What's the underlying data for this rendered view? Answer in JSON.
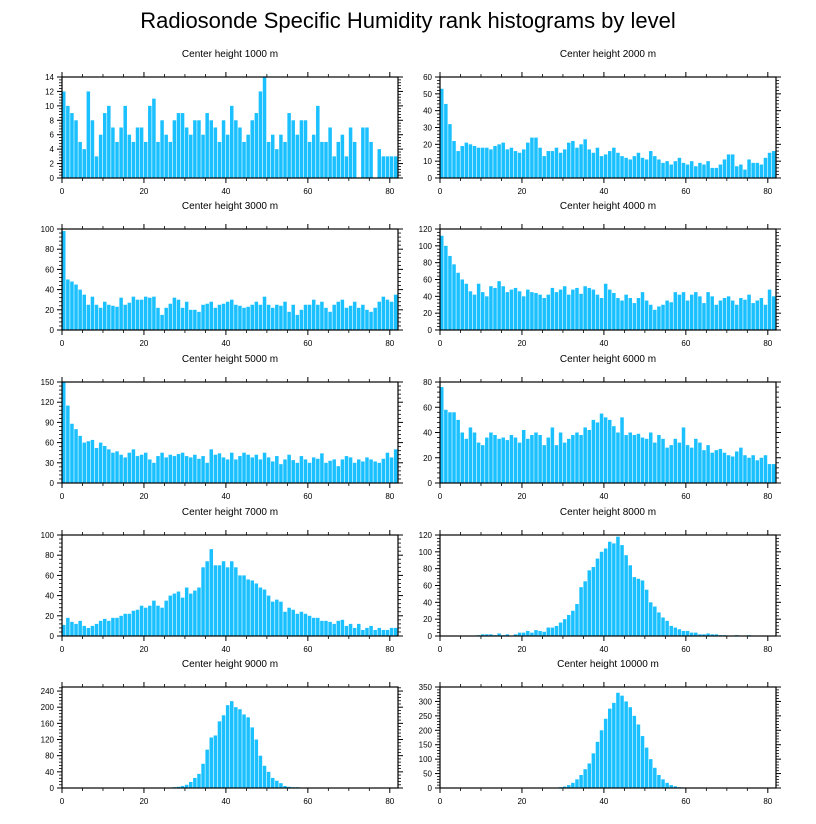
{
  "figure": {
    "title": "Radiosonde Specific Humidity rank histograms by level",
    "bar_color": "#1ac0ff",
    "axis_color": "#000000"
  },
  "chart_data": [
    {
      "type": "bar",
      "title": "Center height 1000 m",
      "xlim": [
        0,
        82
      ],
      "ylim": [
        0,
        14
      ],
      "yticks": [
        0,
        2,
        4,
        6,
        8,
        10,
        12,
        14
      ],
      "xticks": [
        0,
        20,
        40,
        60,
        80
      ],
      "values": [
        12,
        10,
        9,
        8,
        5,
        4,
        12,
        8,
        3,
        6,
        9,
        10,
        7,
        5,
        7,
        10,
        6,
        5,
        7,
        7,
        5,
        10,
        11,
        5,
        8,
        6,
        5,
        8,
        9,
        9,
        7,
        6,
        8,
        8,
        6,
        9,
        8,
        7,
        5,
        8,
        6,
        10,
        8,
        7,
        5,
        6,
        8,
        9,
        12,
        14,
        5,
        6,
        4,
        6,
        5,
        9,
        8,
        6,
        8,
        8,
        5,
        6,
        10,
        5,
        5,
        7,
        3,
        5,
        6,
        3,
        7,
        5,
        0,
        7,
        7,
        5,
        0,
        4,
        3,
        3,
        3,
        3
      ]
    },
    {
      "type": "bar",
      "title": "Center height 2000 m",
      "xlim": [
        0,
        82
      ],
      "ylim": [
        0,
        60
      ],
      "yticks": [
        0,
        10,
        20,
        30,
        40,
        50,
        60
      ],
      "xticks": [
        0,
        20,
        40,
        60,
        80
      ],
      "values": [
        53,
        44,
        32,
        22,
        16,
        19,
        21,
        20,
        19,
        18,
        18,
        18,
        17,
        19,
        20,
        21,
        17,
        18,
        16,
        15,
        17,
        21,
        24,
        24,
        18,
        13,
        16,
        16,
        18,
        15,
        17,
        21,
        22,
        18,
        20,
        23,
        17,
        15,
        18,
        13,
        14,
        16,
        18,
        15,
        13,
        12,
        11,
        13,
        15,
        12,
        11,
        16,
        13,
        11,
        9,
        10,
        8,
        10,
        12,
        9,
        8,
        10,
        7,
        9,
        8,
        10,
        6,
        6,
        8,
        11,
        14,
        14,
        7,
        8,
        5,
        11,
        9,
        9,
        8,
        12,
        15,
        16
      ]
    },
    {
      "type": "bar",
      "title": "Center height 3000 m",
      "xlim": [
        0,
        82
      ],
      "ylim": [
        0,
        100
      ],
      "yticks": [
        0,
        20,
        40,
        60,
        80,
        100
      ],
      "xticks": [
        0,
        20,
        40,
        60,
        80
      ],
      "values": [
        98,
        50,
        48,
        45,
        40,
        35,
        25,
        33,
        25,
        22,
        28,
        25,
        24,
        23,
        32,
        25,
        27,
        33,
        30,
        30,
        33,
        32,
        33,
        22,
        15,
        22,
        26,
        32,
        30,
        22,
        28,
        20,
        20,
        18,
        25,
        26,
        28,
        22,
        25,
        26,
        28,
        30,
        25,
        24,
        22,
        23,
        25,
        28,
        25,
        33,
        25,
        22,
        25,
        24,
        28,
        18,
        25,
        15,
        20,
        25,
        25,
        30,
        25,
        28,
        22,
        18,
        25,
        28,
        30,
        22,
        24,
        28,
        22,
        25,
        20,
        18,
        22,
        28,
        33,
        30,
        28,
        35
      ]
    },
    {
      "type": "bar",
      "title": "Center height 4000 m",
      "xlim": [
        0,
        82
      ],
      "ylim": [
        0,
        120
      ],
      "yticks": [
        0,
        20,
        40,
        60,
        80,
        100,
        120
      ],
      "xticks": [
        0,
        20,
        40,
        60,
        80
      ],
      "values": [
        112,
        100,
        88,
        78,
        68,
        60,
        55,
        46,
        42,
        55,
        45,
        40,
        52,
        50,
        58,
        52,
        45,
        48,
        50,
        46,
        40,
        48,
        45,
        44,
        42,
        38,
        42,
        50,
        45,
        48,
        52,
        42,
        48,
        50,
        43,
        52,
        50,
        48,
        42,
        38,
        55,
        48,
        44,
        38,
        35,
        42,
        38,
        32,
        38,
        45,
        35,
        30,
        24,
        28,
        30,
        35,
        33,
        45,
        42,
        45,
        35,
        42,
        45,
        40,
        32,
        45,
        40,
        30,
        35,
        38,
        40,
        35,
        30,
        38,
        36,
        42,
        32,
        35,
        38,
        30,
        48,
        40
      ]
    },
    {
      "type": "bar",
      "title": "Center height 5000 m",
      "xlim": [
        0,
        82
      ],
      "ylim": [
        0,
        150
      ],
      "yticks": [
        0,
        30,
        60,
        90,
        120,
        150
      ],
      "xticks": [
        0,
        20,
        40,
        60,
        80
      ],
      "values": [
        150,
        115,
        88,
        80,
        70,
        60,
        62,
        64,
        52,
        60,
        55,
        50,
        45,
        47,
        42,
        38,
        45,
        50,
        40,
        42,
        45,
        35,
        30,
        40,
        45,
        38,
        42,
        40,
        43,
        45,
        40,
        38,
        42,
        36,
        40,
        30,
        50,
        42,
        44,
        38,
        35,
        45,
        35,
        40,
        45,
        42,
        38,
        42,
        35,
        45,
        38,
        32,
        40,
        28,
        35,
        42,
        34,
        30,
        40,
        35,
        30,
        38,
        36,
        44,
        30,
        33,
        35,
        25,
        35,
        40,
        38,
        30,
        35,
        32,
        38,
        35,
        32,
        30,
        36,
        45,
        38,
        50
      ]
    },
    {
      "type": "bar",
      "title": "Center height 6000 m",
      "xlim": [
        0,
        82
      ],
      "ylim": [
        0,
        80
      ],
      "yticks": [
        0,
        20,
        40,
        60,
        80
      ],
      "xticks": [
        0,
        20,
        40,
        60,
        80
      ],
      "values": [
        76,
        58,
        56,
        56,
        50,
        40,
        35,
        44,
        40,
        32,
        30,
        36,
        40,
        38,
        35,
        36,
        34,
        38,
        36,
        32,
        42,
        35,
        38,
        40,
        38,
        30,
        36,
        44,
        30,
        40,
        32,
        35,
        38,
        40,
        38,
        44,
        42,
        50,
        48,
        55,
        52,
        50,
        45,
        40,
        52,
        38,
        40,
        38,
        39,
        36,
        35,
        40,
        32,
        38,
        35,
        28,
        30,
        35,
        32,
        44,
        30,
        28,
        35,
        32,
        26,
        30,
        24,
        26,
        27,
        24,
        22,
        21,
        25,
        28,
        22,
        20,
        22,
        18,
        20,
        22,
        15,
        15
      ]
    },
    {
      "type": "bar",
      "title": "Center height 7000 m",
      "xlim": [
        0,
        82
      ],
      "ylim": [
        0,
        100
      ],
      "yticks": [
        0,
        20,
        40,
        60,
        80,
        100
      ],
      "xticks": [
        0,
        20,
        40,
        60,
        80
      ],
      "values": [
        11,
        18,
        14,
        12,
        15,
        10,
        8,
        10,
        12,
        15,
        17,
        15,
        18,
        18,
        20,
        22,
        22,
        25,
        26,
        30,
        28,
        30,
        35,
        30,
        28,
        35,
        40,
        42,
        44,
        38,
        48,
        42,
        45,
        48,
        68,
        74,
        86,
        70,
        70,
        74,
        68,
        74,
        68,
        60,
        60,
        56,
        55,
        52,
        48,
        46,
        40,
        34,
        36,
        34,
        24,
        28,
        26,
        22,
        24,
        22,
        20,
        18,
        18,
        15,
        15,
        14,
        12,
        15,
        16,
        10,
        12,
        8,
        12,
        6,
        8,
        10,
        6,
        8,
        6,
        6,
        8,
        8
      ]
    },
    {
      "type": "bar",
      "title": "Center height 8000 m",
      "xlim": [
        0,
        82
      ],
      "ylim": [
        0,
        120
      ],
      "yticks": [
        0,
        20,
        40,
        60,
        80,
        100,
        120
      ],
      "xticks": [
        0,
        20,
        40,
        60,
        80
      ],
      "values": [
        0,
        0,
        0,
        0,
        0,
        0,
        0,
        0,
        0,
        1,
        2,
        2,
        2,
        1,
        3,
        1,
        2,
        0,
        2,
        4,
        4,
        6,
        4,
        7,
        6,
        5,
        10,
        10,
        12,
        16,
        20,
        25,
        30,
        38,
        58,
        65,
        78,
        82,
        92,
        100,
        104,
        112,
        110,
        118,
        108,
        96,
        84,
        70,
        68,
        66,
        55,
        40,
        35,
        28,
        22,
        18,
        12,
        10,
        8,
        6,
        6,
        4,
        4,
        2,
        2,
        3,
        2,
        2,
        1,
        1,
        0,
        0,
        1,
        0,
        0,
        1,
        0,
        0,
        0,
        0,
        0,
        0
      ]
    },
    {
      "type": "bar",
      "title": "Center height 9000 m",
      "xlim": [
        0,
        82
      ],
      "ylim": [
        0,
        250
      ],
      "yticks": [
        0,
        40,
        80,
        120,
        160,
        200,
        240
      ],
      "xticks": [
        0,
        20,
        40,
        60,
        80
      ],
      "values": [
        0,
        0,
        0,
        0,
        0,
        0,
        0,
        0,
        0,
        0,
        0,
        0,
        0,
        0,
        0,
        0,
        0,
        0,
        0,
        0,
        0,
        0,
        0,
        0,
        0,
        0,
        1,
        2,
        3,
        5,
        8,
        15,
        25,
        35,
        60,
        95,
        125,
        130,
        165,
        180,
        205,
        215,
        200,
        195,
        182,
        175,
        150,
        120,
        80,
        55,
        40,
        25,
        18,
        12,
        5,
        3,
        2,
        2,
        1,
        1,
        1,
        0,
        1,
        0,
        0,
        0,
        0,
        1,
        0,
        0,
        0,
        0,
        0,
        0,
        0,
        0,
        0,
        0,
        0,
        0,
        0,
        0
      ]
    },
    {
      "type": "bar",
      "title": "Center height 10000 m",
      "xlim": [
        0,
        82
      ],
      "ylim": [
        0,
        350
      ],
      "yticks": [
        0,
        50,
        100,
        150,
        200,
        250,
        300,
        350
      ],
      "xticks": [
        0,
        20,
        40,
        60,
        80
      ],
      "values": [
        0,
        0,
        0,
        0,
        0,
        0,
        0,
        0,
        0,
        0,
        0,
        0,
        0,
        0,
        0,
        0,
        0,
        0,
        0,
        0,
        0,
        0,
        0,
        0,
        0,
        0,
        0,
        0,
        1,
        3,
        5,
        10,
        18,
        30,
        45,
        65,
        85,
        120,
        160,
        200,
        240,
        275,
        295,
        330,
        320,
        300,
        280,
        250,
        220,
        180,
        140,
        100,
        70,
        45,
        30,
        18,
        10,
        6,
        3,
        2,
        1,
        1,
        0,
        0,
        0,
        0,
        0,
        0,
        0,
        0,
        0,
        0,
        0,
        0,
        0,
        0,
        0,
        0,
        0,
        0,
        0,
        0
      ]
    }
  ]
}
